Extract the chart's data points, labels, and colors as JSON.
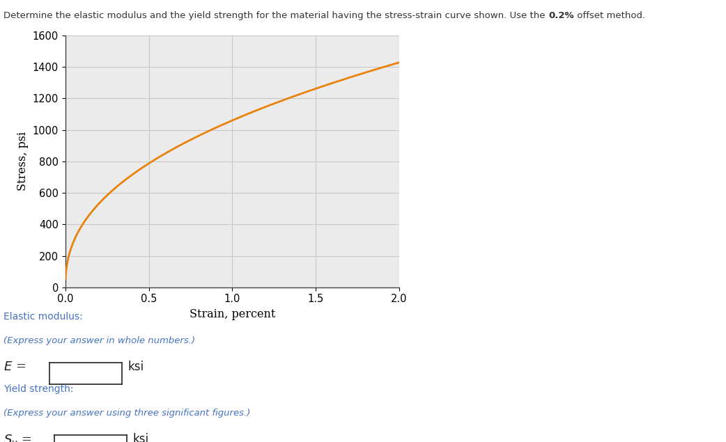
{
  "xlabel": "Strain, percent",
  "ylabel": "Stress, psi",
  "xlim": [
    0,
    2
  ],
  "ylim": [
    0,
    1600
  ],
  "xticks": [
    0,
    0.5,
    1,
    1.5,
    2
  ],
  "yticks": [
    0,
    200,
    400,
    600,
    800,
    1000,
    1200,
    1400,
    1600
  ],
  "curve_color": "#E8820C",
  "curve_linewidth": 2.0,
  "background_color": "#ffffff",
  "grid_color": "#c8c8c8",
  "plot_bg_color": "#ebebeb",
  "curve_C": 1060.0,
  "curve_n": 0.43,
  "blue": "#4472C4",
  "black": "#1a1a1a",
  "dark": "#333333",
  "fig_width": 10.42,
  "fig_height": 6.35,
  "title_prefix": "Determine the elastic modulus and the yield strength for the material having the stress-strain curve shown. Use the ",
  "title_bold": "0.2%",
  "title_suffix": " offset method.",
  "label_elastic": "Elastic modulus:",
  "label_elastic_sub": "(Express your answer in whole numbers.)",
  "label_E_unit": "ksi",
  "label_yield": "Yield strength:",
  "label_yield_sub": "(Express your answer using three significant figures.)",
  "label_Sy_unit": "ksi"
}
